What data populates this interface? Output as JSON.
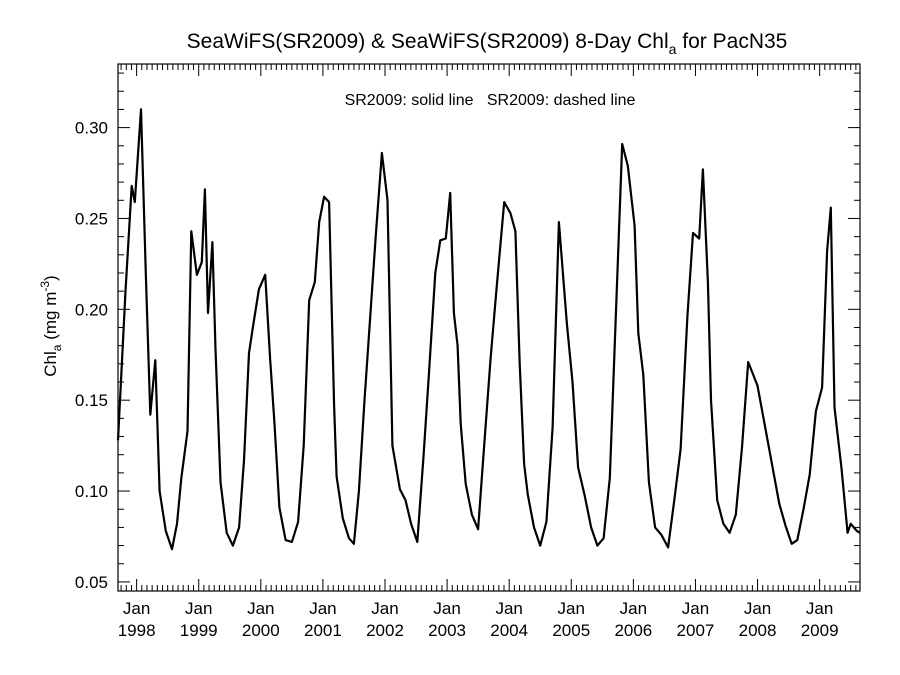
{
  "chart_data": {
    "type": "line",
    "title": {
      "main": "SeaWiFS(SR2009) & SeaWiFS(SR2009) 8-Day Chl",
      "sub": "a",
      "tail": " for PacN35"
    },
    "ylabel": {
      "main": "Chl",
      "sub": "a",
      "units": " (mg m",
      "sup": "-3",
      "close": ")"
    },
    "annotation": "SR2009: solid line   SR2009: dashed line",
    "xlim": [
      1997.7,
      2009.65
    ],
    "ylim": [
      0.045,
      0.335
    ],
    "yticks": [
      0.05,
      0.1,
      0.15,
      0.2,
      0.25,
      0.3
    ],
    "ytick_labels": [
      "0.05",
      "0.10",
      "0.15",
      "0.20",
      "0.25",
      "0.30"
    ],
    "xticks": [
      {
        "x": 1998,
        "month": "Jan",
        "year": "1998"
      },
      {
        "x": 1999,
        "month": "Jan",
        "year": "1999"
      },
      {
        "x": 2000,
        "month": "Jan",
        "year": "2000"
      },
      {
        "x": 2001,
        "month": "Jan",
        "year": "2001"
      },
      {
        "x": 2002,
        "month": "Jan",
        "year": "2002"
      },
      {
        "x": 2003,
        "month": "Jan",
        "year": "2003"
      },
      {
        "x": 2004,
        "month": "Jan",
        "year": "2004"
      },
      {
        "x": 2005,
        "month": "Jan",
        "year": "2005"
      },
      {
        "x": 2006,
        "month": "Jan",
        "year": "2006"
      },
      {
        "x": 2007,
        "month": "Jan",
        "year": "2007"
      },
      {
        "x": 2008,
        "month": "Jan",
        "year": "2008"
      },
      {
        "x": 2009,
        "month": "Jan",
        "year": "2009"
      }
    ],
    "series": [
      {
        "style": "solid",
        "x": [
          1997.7,
          1997.82,
          1997.92,
          1997.97,
          1998.07,
          1998.15,
          1998.22,
          1998.3,
          1998.37,
          1998.47,
          1998.57,
          1998.65,
          1998.72,
          1998.82,
          1998.88,
          1998.97,
          1999.05,
          1999.1,
          1999.15,
          1999.22,
          1999.27,
          1999.35,
          1999.45,
          1999.55,
          1999.65,
          1999.73,
          1999.81,
          1999.88,
          1999.97,
          2000.07,
          2000.15,
          2000.22,
          2000.3,
          2000.4,
          2000.5,
          2000.6,
          2000.69,
          2000.78,
          2000.87,
          2000.94,
          2001.02,
          2001.1,
          2001.18,
          2001.22,
          2001.32,
          2001.42,
          2001.5,
          2001.58,
          2001.67,
          2001.76,
          2001.85,
          2001.95,
          2002.04,
          2002.12,
          2002.24,
          2002.33,
          2002.42,
          2002.52,
          2002.62,
          2002.71,
          2002.81,
          2002.89,
          2002.98,
          2003.05,
          2003.11,
          2003.17,
          2003.22,
          2003.3,
          2003.4,
          2003.5,
          2003.6,
          2003.7,
          2003.8,
          2003.92,
          2004.02,
          2004.1,
          2004.17,
          2004.24,
          2004.3,
          2004.4,
          2004.5,
          2004.6,
          2004.7,
          2004.8,
          2004.93,
          2005.02,
          2005.11,
          2005.22,
          2005.32,
          2005.42,
          2005.52,
          2005.62,
          2005.72,
          2005.82,
          2005.91,
          2006.02,
          2006.08,
          2006.16,
          2006.25,
          2006.35,
          2006.45,
          2006.56,
          2006.66,
          2006.76,
          2006.87,
          2006.96,
          2007.06,
          2007.12,
          2007.2,
          2007.25,
          2007.35,
          2007.45,
          2007.55,
          2007.65,
          2007.75,
          2007.85,
          2008.0,
          2008.35,
          2008.45,
          2008.55,
          2008.64,
          2008.74,
          2008.84,
          2008.94,
          2009.04,
          2009.12,
          2009.18,
          2009.24,
          2009.35,
          2009.45,
          2009.5,
          2009.55,
          2009.6,
          2009.65
        ],
        "y": [
          0.128,
          0.21,
          0.268,
          0.259,
          0.31,
          0.218,
          0.142,
          0.172,
          0.1,
          0.078,
          0.068,
          0.082,
          0.107,
          0.133,
          0.243,
          0.219,
          0.226,
          0.266,
          0.198,
          0.237,
          0.178,
          0.105,
          0.077,
          0.07,
          0.08,
          0.117,
          0.176,
          0.192,
          0.211,
          0.219,
          0.173,
          0.137,
          0.091,
          0.073,
          0.072,
          0.083,
          0.125,
          0.205,
          0.215,
          0.248,
          0.262,
          0.259,
          0.147,
          0.108,
          0.085,
          0.074,
          0.071,
          0.1,
          0.15,
          0.195,
          0.24,
          0.286,
          0.26,
          0.125,
          0.101,
          0.095,
          0.082,
          0.072,
          0.119,
          0.166,
          0.22,
          0.238,
          0.239,
          0.264,
          0.198,
          0.18,
          0.137,
          0.104,
          0.087,
          0.079,
          0.126,
          0.173,
          0.213,
          0.259,
          0.253,
          0.243,
          0.17,
          0.115,
          0.098,
          0.08,
          0.07,
          0.083,
          0.135,
          0.248,
          0.192,
          0.16,
          0.113,
          0.097,
          0.08,
          0.07,
          0.074,
          0.107,
          0.199,
          0.291,
          0.279,
          0.246,
          0.187,
          0.164,
          0.105,
          0.08,
          0.076,
          0.069,
          0.095,
          0.123,
          0.196,
          0.242,
          0.239,
          0.277,
          0.215,
          0.15,
          0.095,
          0.082,
          0.077,
          0.087,
          0.124,
          0.171,
          0.158,
          0.093,
          0.081,
          0.071,
          0.073,
          0.09,
          0.109,
          0.144,
          0.157,
          0.232,
          0.256,
          0.146,
          0.113,
          0.077,
          0.082,
          0.08,
          0.078,
          0.077
        ]
      }
    ]
  }
}
